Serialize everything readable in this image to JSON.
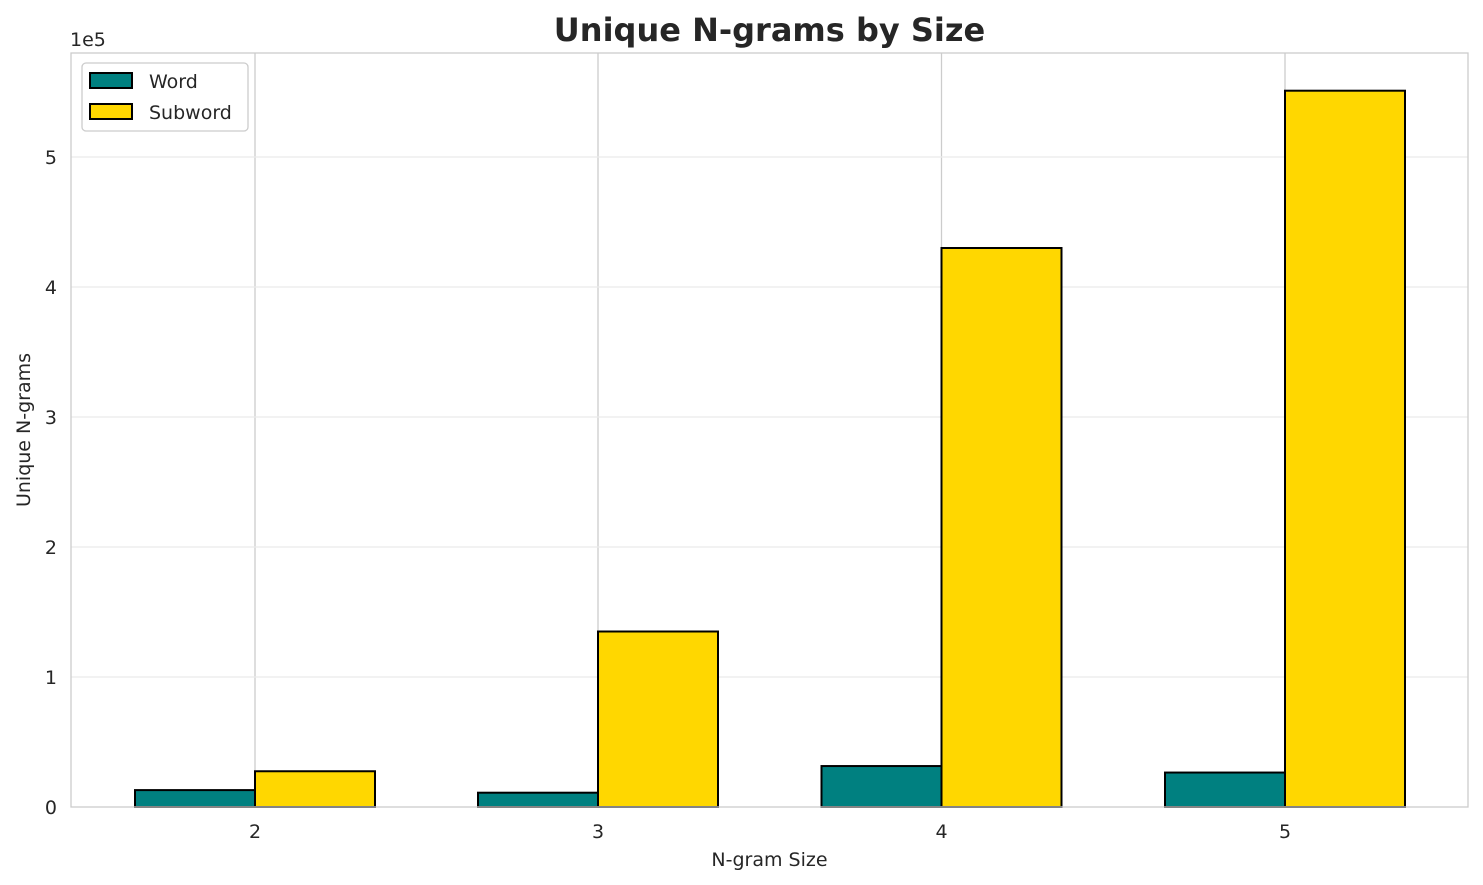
{
  "chart_data": {
    "type": "bar",
    "title": "Unique N-grams by Size",
    "xlabel": "N-gram Size",
    "ylabel": "Unique N-grams",
    "y_offset_label": "1e5",
    "categories": [
      "2",
      "3",
      "4",
      "5"
    ],
    "series": [
      {
        "name": "Word",
        "color": "#008080",
        "values": [
          13000,
          11000,
          31500,
          26500
        ]
      },
      {
        "name": "Subword",
        "color": "#FFD700",
        "values": [
          27500,
          135000,
          430000,
          551000
        ]
      }
    ],
    "ylim": [
      0,
      580000
    ],
    "yticks": [
      0,
      100000,
      200000,
      300000,
      400000,
      500000
    ],
    "ytick_labels": [
      "0",
      "1",
      "2",
      "3",
      "4",
      "5"
    ],
    "grid": true,
    "legend_placement": "top-left"
  }
}
